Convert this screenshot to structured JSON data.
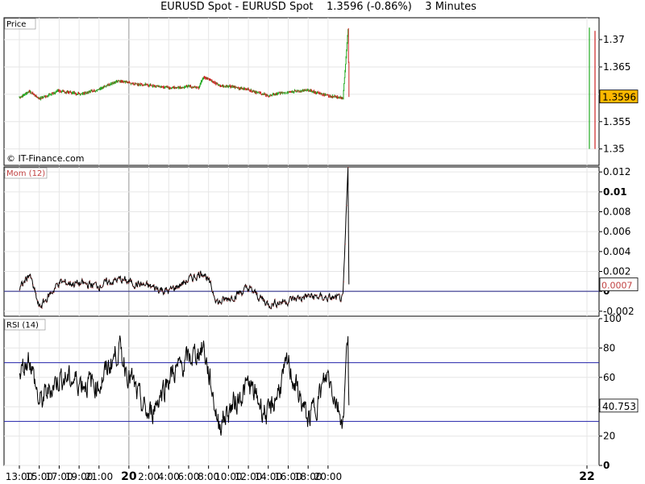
{
  "title_line": "EURUSD Spot - EURUSD Spot    1.3596 (-0.86%)    3 Minutes",
  "copyright": "© IT-Finance.com",
  "colors": {
    "up": "#22aa22",
    "down": "#cc2222",
    "price_badge_bg": "#ffb800",
    "mom_line": "#000000",
    "mom_zero_line": "#1a1a80",
    "rsi_bands": "#2222aa",
    "grid": "#e6e6e6",
    "session_divider": "#999999"
  },
  "x_axis": {
    "ticks": [
      {
        "label": "13:00",
        "bold": false
      },
      {
        "label": "15:00",
        "bold": false
      },
      {
        "label": "17:00",
        "bold": false
      },
      {
        "label": "19:00",
        "bold": false
      },
      {
        "label": "21:00",
        "bold": false
      },
      {
        "label": "20",
        "bold": true
      },
      {
        "label": "2:00",
        "bold": false
      },
      {
        "label": "4:00",
        "bold": false
      },
      {
        "label": "6:00",
        "bold": false
      },
      {
        "label": "8:00",
        "bold": false
      },
      {
        "label": "10:00",
        "bold": false
      },
      {
        "label": "12:00",
        "bold": false
      },
      {
        "label": "14:00",
        "bold": false
      },
      {
        "label": "16:00",
        "bold": false
      },
      {
        "label": "18:00",
        "bold": false
      },
      {
        "label": "20:00",
        "bold": false
      },
      {
        "label": "22",
        "bold": true
      }
    ]
  },
  "chart_data": [
    {
      "type": "candlestick",
      "panel_label": "Price",
      "ylim": [
        1.347,
        1.374
      ],
      "y_ticks": [
        "1.37",
        "1.365",
        "1.36",
        "1.355",
        "1.35"
      ],
      "last_value": "1.3596",
      "approx_close_path": [
        {
          "t": "13:00",
          "v": 1.3594
        },
        {
          "t": "14:00",
          "v": 1.3606
        },
        {
          "t": "15:00",
          "v": 1.3592
        },
        {
          "t": "17:00",
          "v": 1.3606
        },
        {
          "t": "19:00",
          "v": 1.3601
        },
        {
          "t": "21:00",
          "v": 1.3609
        },
        {
          "t": "23:00",
          "v": 1.3625
        },
        {
          "t": "0:00",
          "v": 1.3621
        },
        {
          "t": "4:00",
          "v": 1.3612
        },
        {
          "t": "6:00",
          "v": 1.3614
        },
        {
          "t": "7:00",
          "v": 1.3613
        },
        {
          "t": "7:30",
          "v": 1.3633
        },
        {
          "t": "9:00",
          "v": 1.3617
        },
        {
          "t": "12:00",
          "v": 1.3609
        },
        {
          "t": "14:00",
          "v": 1.3597
        },
        {
          "t": "16:00",
          "v": 1.3605
        },
        {
          "t": "18:00",
          "v": 1.3607
        },
        {
          "t": "20:00",
          "v": 1.3598
        },
        {
          "t": "21:30",
          "v": 1.3593
        },
        {
          "t": "22:00",
          "v": 1.3717
        },
        {
          "t": "22:06",
          "v": 1.3596
        }
      ]
    },
    {
      "type": "line",
      "panel_label": "Mom (12)",
      "ylim": [
        -0.0025,
        0.0125
      ],
      "y_ticks": [
        "0.012",
        "0.01",
        "0.008",
        "0.006",
        "0.004",
        "0.002",
        "0",
        "-0.002"
      ],
      "reference_line": 0,
      "last_value": "0.0007",
      "approx_path": [
        {
          "t": "13:00",
          "v": 0.0001
        },
        {
          "t": "14:00",
          "v": 0.0018
        },
        {
          "t": "15:00",
          "v": -0.0017
        },
        {
          "t": "17:00",
          "v": 0.0009
        },
        {
          "t": "21:00",
          "v": 0.0006
        },
        {
          "t": "23:00",
          "v": 0.0012
        },
        {
          "t": "4:00",
          "v": 0.0
        },
        {
          "t": "7:30",
          "v": 0.002
        },
        {
          "t": "9:00",
          "v": -0.0012
        },
        {
          "t": "12:00",
          "v": 0.0003
        },
        {
          "t": "14:00",
          "v": -0.0013
        },
        {
          "t": "18:00",
          "v": -0.0005
        },
        {
          "t": "21:30",
          "v": -0.0008
        },
        {
          "t": "22:00",
          "v": 0.0123
        },
        {
          "t": "22:06",
          "v": 0.0007
        }
      ]
    },
    {
      "type": "line",
      "panel_label": "RSI (14)",
      "ylim": [
        0,
        100
      ],
      "y_ticks": [
        "100",
        "80",
        "60",
        "40",
        "20",
        "0"
      ],
      "bands": [
        70,
        30
      ],
      "last_value": "40.753",
      "approx_path": [
        {
          "t": "13:00",
          "v": 62
        },
        {
          "t": "14:00",
          "v": 75
        },
        {
          "t": "15:00",
          "v": 42
        },
        {
          "t": "17:00",
          "v": 60
        },
        {
          "t": "21:00",
          "v": 55
        },
        {
          "t": "23:00",
          "v": 80
        },
        {
          "t": "1:00",
          "v": 45
        },
        {
          "t": "2:00",
          "v": 33
        },
        {
          "t": "4:00",
          "v": 60
        },
        {
          "t": "7:30",
          "v": 81
        },
        {
          "t": "9:00",
          "v": 28
        },
        {
          "t": "12:00",
          "v": 55
        },
        {
          "t": "14:00",
          "v": 33
        },
        {
          "t": "16:00",
          "v": 69
        },
        {
          "t": "18:00",
          "v": 30
        },
        {
          "t": "20:00",
          "v": 62
        },
        {
          "t": "21:30",
          "v": 30
        },
        {
          "t": "22:00",
          "v": 92
        },
        {
          "t": "22:06",
          "v": 41
        }
      ]
    }
  ]
}
